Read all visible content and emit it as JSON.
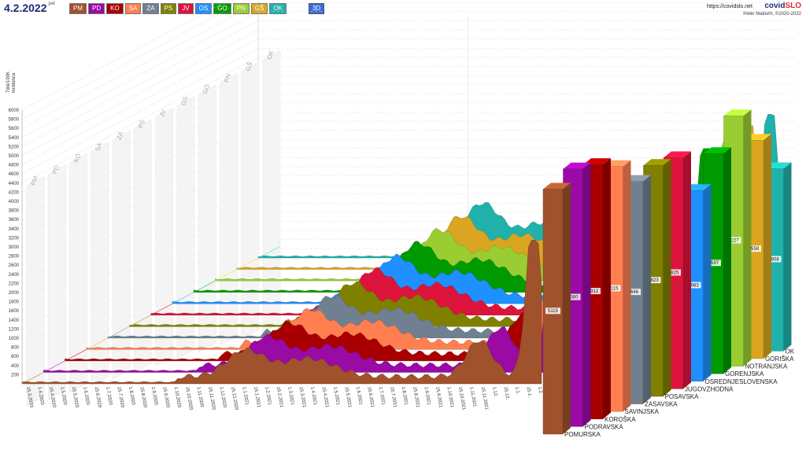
{
  "header": {
    "date": "4.2.2022",
    "date_sup": "pet",
    "mode_label": "3D",
    "url": "https://covidslo.net",
    "brand_a": "covid",
    "brand_b": "SLO",
    "author": "Peter Malovrh, ©2020-2022"
  },
  "regions": [
    {
      "code": "PM",
      "name": "POMURSKA",
      "color": "#a0522d"
    },
    {
      "code": "PD",
      "name": "PODRAVSKA",
      "color": "#9a0aa5"
    },
    {
      "code": "KO",
      "name": "KOROŠKA",
      "color": "#a80000"
    },
    {
      "code": "SA",
      "name": "SAVINJSKA",
      "color": "#ff7f50"
    },
    {
      "code": "ZA",
      "name": "ZASAVSKA",
      "color": "#708090"
    },
    {
      "code": "PS",
      "name": "POSAVSKA",
      "color": "#808000"
    },
    {
      "code": "JV",
      "name": "JUGOVZHODNA",
      "color": "#dc143c"
    },
    {
      "code": "OS",
      "name": "OSREDNJESLOVENSKA",
      "color": "#1e90ff"
    },
    {
      "code": "GO",
      "name": "GORENJSKA",
      "color": "#009a00"
    },
    {
      "code": "PN",
      "name": "NOTRANJSKA",
      "color": "#9acd32"
    },
    {
      "code": "GŠ",
      "name": "GORIŠKA",
      "color": "#daa520"
    },
    {
      "code": "OK",
      "name": "OK",
      "color": "#20b2aa"
    }
  ],
  "chart_data": {
    "type": "area",
    "ylabel": "7dni/100K\nincidenca",
    "yticks": [
      200,
      400,
      600,
      800,
      1000,
      1200,
      1400,
      1600,
      1800,
      2000,
      2200,
      2400,
      2600,
      2800,
      3000,
      3200,
      3400,
      3600,
      3800,
      4000,
      4200,
      4400,
      4600,
      4800,
      5000,
      5200,
      5400,
      5600,
      5800,
      6000
    ],
    "xticks": [
      "15.3.2020",
      "1.4.2020",
      "15.4.2020",
      "1.5.2020",
      "15.5.2020",
      "1.6.2020",
      "15.6.2020",
      "1.7.2020",
      "15.7.2020",
      "1.8.2020",
      "15.8.2020",
      "1.9.2020",
      "15.9.2020",
      "1.10.2020",
      "15.10.2020",
      "1.11.2020",
      "15.11.2020",
      "1.12.2020",
      "15.12.2020",
      "1.1.2021",
      "15.1.2021",
      "1.2.2021",
      "15.2.2021",
      "1.3.2021",
      "15.3.2021",
      "1.4.2021",
      "15.4.2021",
      "1.5.2021",
      "15.5.2021",
      "1.6.2021",
      "15.6.2021",
      "1.7.2021",
      "15.7.2021",
      "1.8.2021",
      "15.8.2021",
      "1.9.2021",
      "15.9.2021",
      "1.10.2021",
      "15.10.2021",
      "1.11.2021",
      "15.11.2021",
      "1.12.",
      "15.12.",
      "1.1.",
      "15.1.",
      "1.2."
    ],
    "series": [
      {
        "name": "POMURSKA",
        "latest_label": "5115",
        "latest": 5115
      },
      {
        "name": "PODRAVSKA",
        "latest_label": "5380",
        "latest": 5380
      },
      {
        "name": "KOROŠKA",
        "latest_label": "5312",
        "latest": 5312
      },
      {
        "name": "SAVINJSKA",
        "latest_label": "5115",
        "latest": 5115
      },
      {
        "name": "ZASAVSKA",
        "latest_label": "4646",
        "latest": 4646
      },
      {
        "name": "POSAVSKA",
        "latest_label": "4823",
        "latest": 4823
      },
      {
        "name": "JUGOVZHODNA",
        "latest_label": "4825",
        "latest": 4825
      },
      {
        "name": "OSREDNJESLOVENSKA",
        "latest_label": "3983",
        "latest": 3983
      },
      {
        "name": "GORENJSKA",
        "latest_label": "4597",
        "latest": 4597
      },
      {
        "name": "NOTRANJSKA",
        "latest_label": "5227",
        "latest": 5227
      },
      {
        "name": "GORIŠKA",
        "latest_label": "4558",
        "latest": 4558
      },
      {
        "name": "OK",
        "latest_label": "3808",
        "latest": 3808
      }
    ],
    "yrange": [
      0,
      6000
    ]
  }
}
